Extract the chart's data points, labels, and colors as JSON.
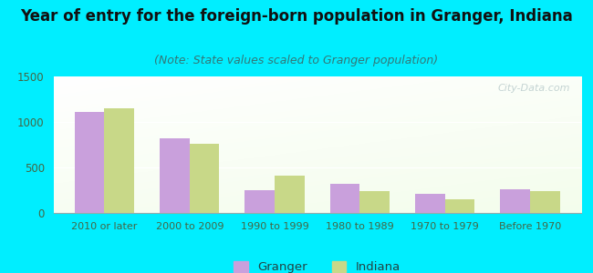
{
  "title": "Year of entry for the foreign-born population in Granger, Indiana",
  "subtitle": "(Note: State values scaled to Granger population)",
  "categories": [
    "2010 or later",
    "2000 to 2009",
    "1990 to 1999",
    "1980 to 1989",
    "1970 to 1979",
    "Before 1970"
  ],
  "granger_values": [
    1110,
    820,
    250,
    320,
    215,
    265
  ],
  "indiana_values": [
    1155,
    760,
    415,
    245,
    155,
    245
  ],
  "ylim": [
    0,
    1500
  ],
  "yticks": [
    0,
    500,
    1000,
    1500
  ],
  "granger_color": "#c9a0dc",
  "indiana_color": "#c8d888",
  "background_color": "#00eeff",
  "title_fontsize": 12,
  "subtitle_fontsize": 9,
  "legend_labels": [
    "Granger",
    "Indiana"
  ],
  "bar_width": 0.35,
  "watermark": "City-Data.com"
}
